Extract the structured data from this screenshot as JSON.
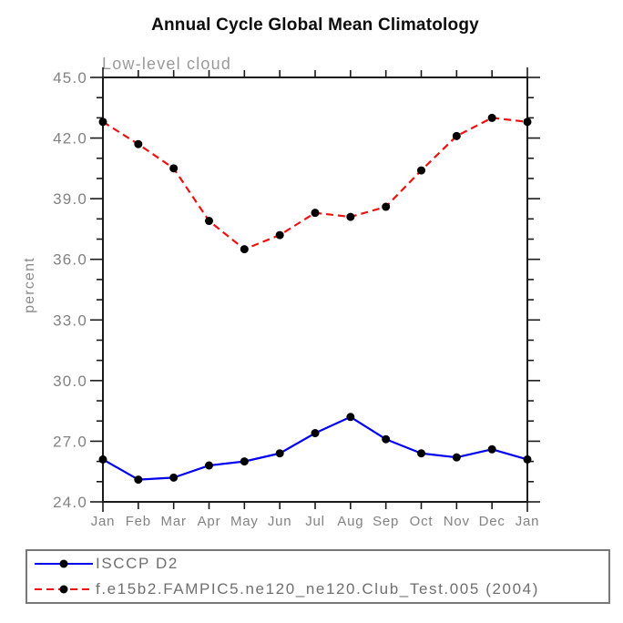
{
  "chart_data": {
    "type": "line",
    "title": "Annual Cycle Global Mean Climatology",
    "subtitle": "Low-level cloud",
    "ylabel": "percent",
    "xlabel": "",
    "ylim": [
      24.0,
      45.0
    ],
    "y_major_ticks": [
      45.0,
      42.0,
      39.0,
      36.0,
      33.0,
      30.0,
      27.0,
      24.0
    ],
    "y_tick_labels": [
      "45.0",
      "42.0",
      "39.0",
      "36.0",
      "33.0",
      "30.0",
      "27.0",
      "24.0"
    ],
    "y_minor_step": 1.0,
    "categories": [
      "Jan",
      "Feb",
      "Mar",
      "Apr",
      "May",
      "Jun",
      "Jul",
      "Aug",
      "Sep",
      "Oct",
      "Nov",
      "Dec",
      "Jan"
    ],
    "grid": false,
    "legend_position": "bottom-left",
    "marker": "filled-circle",
    "marker_color": "#000000",
    "series": [
      {
        "name": "ISCCP D2",
        "color": "#0000ee",
        "line_style": "solid",
        "values": [
          26.1,
          25.1,
          25.2,
          25.8,
          26.0,
          26.4,
          27.4,
          28.2,
          27.1,
          26.4,
          26.2,
          26.6,
          26.1
        ]
      },
      {
        "name": "f.e15b2.FAMPIC5.ne120_ne120.Club_Test.005 (2004)",
        "color": "#ee1111",
        "line_style": "dashed",
        "values": [
          42.8,
          41.7,
          40.5,
          37.9,
          36.5,
          37.2,
          38.3,
          38.1,
          38.6,
          40.4,
          42.1,
          43.0,
          42.8
        ]
      }
    ]
  },
  "colors": {
    "axis": "#1a1a1a",
    "tick_label": "#828282",
    "subtitle": "#9a9a9a",
    "legend_text": "#6f6f6f",
    "legend_border": "#787878"
  }
}
